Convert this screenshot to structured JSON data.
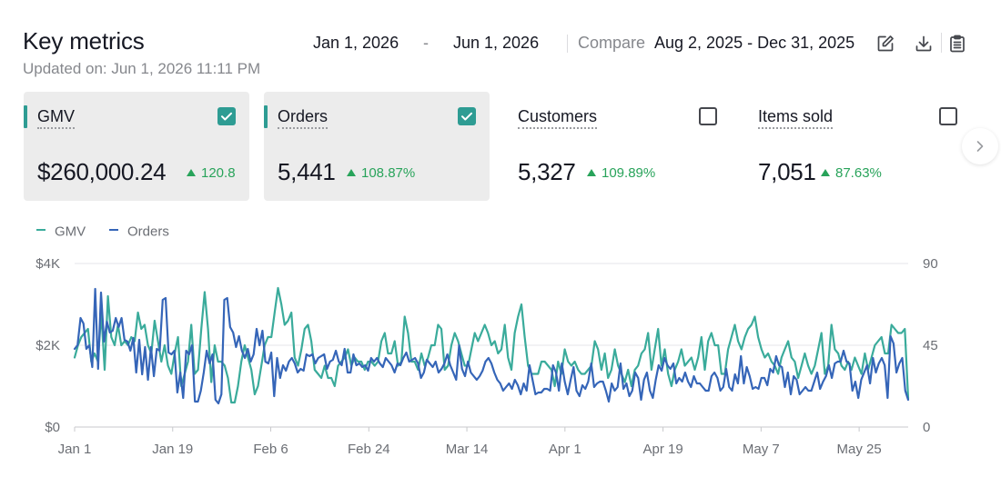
{
  "header": {
    "title": "Key metrics",
    "updated": "Updated on: Jun 1, 2026 11:11 PM",
    "date_start": "Jan 1, 2026",
    "date_separator": "-",
    "date_end": "Jun 1, 2026",
    "compare_label": "Compare",
    "compare_range": "Aug 2, 2025 - Dec 31, 2025"
  },
  "icons": {
    "edit": "edit-icon",
    "download": "download-icon",
    "report": "clipboard-icon",
    "next": "chevron-right-icon"
  },
  "colors": {
    "gmv": "#3aab9b",
    "orders": "#3565b8",
    "accent": "#2e9c93",
    "positive": "#28a35a"
  },
  "cards": [
    {
      "label": "GMV",
      "value": "$260,000.24",
      "change": "120.8",
      "checked": true,
      "selected": true
    },
    {
      "label": "Orders",
      "value": "5,441",
      "change": "108.87%",
      "checked": true,
      "selected": true
    },
    {
      "label": "Customers",
      "value": "5,327",
      "change": "109.89%",
      "checked": false,
      "selected": false
    },
    {
      "label": "Items sold",
      "value": "7,051",
      "change": "87.63%",
      "checked": false,
      "selected": false
    }
  ],
  "chart_data": {
    "type": "line",
    "x_labels": [
      "Jan 1",
      "Jan 19",
      "Feb 6",
      "Feb 24",
      "Mar 14",
      "Apr 1",
      "Apr 19",
      "May 7",
      "May 25"
    ],
    "x_start": "Jan 1, 2026",
    "days": 153,
    "y_left": {
      "ticks": [
        "$0",
        "$2K",
        "$4K"
      ],
      "range": [
        0,
        4000
      ]
    },
    "y_right": {
      "ticks": [
        "0",
        "45",
        "90"
      ],
      "range": [
        0,
        90
      ]
    },
    "grid": true,
    "legend_position": "top-left",
    "series": [
      {
        "name": "GMV",
        "axis": "left",
        "color": "#3aab9b",
        "values": [
          1700,
          2000,
          2200,
          2300,
          2400,
          1600,
          1800,
          1600,
          2800,
          1400,
          3200,
          2200,
          2000,
          2500,
          2000,
          2100,
          2000,
          2200,
          2100,
          2800,
          2400,
          2500,
          2000,
          1800,
          2600,
          2100,
          1600,
          2000,
          1500,
          1300,
          1800,
          2200,
          1000,
          1300,
          1600,
          2500,
          1300,
          1400,
          2400,
          3300,
          2400,
          1100,
          2000,
          1600,
          1600,
          1500,
          1200,
          600,
          600,
          1000,
          1600,
          2000,
          1700,
          1400,
          800,
          1000,
          1500,
          2000,
          2200,
          2200,
          2800,
          3400,
          3000,
          2500,
          2600,
          2800,
          1700,
          1500,
          1900,
          2400,
          2500,
          2100,
          1400,
          1300,
          1200,
          1500,
          1200,
          1200,
          1000,
          1500,
          1600,
          1700,
          1900,
          1500,
          1700,
          1600,
          1600,
          1400,
          1600,
          1600,
          1500,
          1600,
          2100,
          2300,
          1800,
          1800,
          2100,
          1500,
          1600,
          2700,
          2300,
          1600,
          1600,
          1400,
          1800,
          1500,
          1700,
          2000,
          2000,
          2500,
          2400,
          1400,
          1500,
          2000,
          2300,
          2100,
          1800,
          1500,
          1500,
          1900,
          2300,
          2100,
          2300,
          2500,
          2300,
          2000,
          2100,
          1800,
          1900,
          2500,
          1700,
          1400,
          2300,
          2700,
          3000,
          2200,
          1500,
          1300,
          1300,
          1300,
          1600,
          1600,
          1500,
          1400,
          1000,
          1600,
          1300,
          1900,
          1600,
          1500,
          1600,
          1400,
          1300,
          1300,
          1400,
          1500,
          2100,
          1900,
          1400,
          1800,
          1200,
          1400,
          1900,
          1500,
          1300,
          1100,
          1400,
          1000,
          1400,
          1500,
          1800,
          1900,
          2300,
          1400,
          1900,
          2400,
          1500,
          1900,
          1300,
          1000,
          1400,
          1600,
          1900,
          1500,
          1600,
          1700,
          1400,
          1700,
          2200,
          1400,
          2100,
          2300,
          2000,
          2000,
          1300,
          1300,
          1900,
          2200,
          2500,
          2100,
          1900,
          2200,
          2400,
          2500,
          2700,
          2200,
          1900,
          1700,
          1800,
          1600,
          1500,
          1300,
          1700,
          1900,
          2100,
          1700,
          1600,
          1200,
          1500,
          1800,
          1500,
          1300,
          1500,
          1900,
          2300,
          1300,
          1500,
          2500,
          1900,
          1800,
          1500,
          1400,
          1600,
          1400,
          1700,
          1500,
          1300,
          1800,
          1400,
          1700,
          2000,
          2100,
          2200,
          1800,
          1800,
          2500,
          2400,
          2300,
          2300,
          2400,
          700
        ]
      },
      {
        "name": "Orders",
        "axis": "right",
        "color": "#3565b8",
        "values": [
          43,
          45,
          60,
          57,
          43,
          45,
          33,
          76,
          32,
          74,
          47,
          58,
          52,
          53,
          60,
          55,
          60,
          48,
          47,
          42,
          49,
          30,
          48,
          29,
          44,
          26,
          44,
          28,
          43,
          42,
          70,
          71,
          41,
          40,
          42,
          19,
          30,
          16,
          42,
          40,
          45,
          14,
          14,
          20,
          30,
          42,
          35,
          40,
          15,
          13,
          18,
          70,
          71,
          55,
          52,
          44,
          50,
          42,
          38,
          43,
          36,
          40,
          54,
          45,
          53,
          36,
          35,
          41,
          17,
          38,
          27,
          34,
          31,
          36,
          38,
          35,
          30,
          32,
          31,
          40,
          39,
          40,
          35,
          38,
          39,
          40,
          32,
          36,
          37,
          42,
          36,
          34,
          43,
          30,
          30,
          40,
          34,
          35,
          33,
          34,
          31,
          38,
          36,
          38,
          35,
          33,
          38,
          36,
          34,
          30,
          35,
          34,
          38,
          41,
          36,
          37,
          38,
          35,
          27,
          30,
          37,
          35,
          33,
          36,
          30,
          32,
          35,
          40,
          34,
          30,
          26,
          45,
          32,
          28,
          36,
          30,
          28,
          26,
          28,
          31,
          36,
          38,
          35,
          30,
          26,
          24,
          20,
          22,
          24,
          21,
          26,
          23,
          18,
          24,
          20,
          34,
          26,
          18,
          19,
          19,
          21,
          21,
          20,
          34,
          30,
          20,
          35,
          25,
          18,
          26,
          33,
          20,
          17,
          23,
          21,
          25,
          35,
          22,
          24,
          25,
          25,
          20,
          14,
          24,
          20,
          22,
          35,
          21,
          24,
          17,
          20,
          30,
          27,
          15,
          26,
          30,
          20,
          16,
          26,
          34,
          31,
          38,
          34,
          32,
          35,
          24,
          27,
          25,
          30,
          25,
          22,
          28,
          24,
          24,
          22,
          20,
          20,
          28,
          30,
          27,
          20,
          22,
          32,
          22,
          20,
          29,
          24,
          39,
          24,
          33,
          28,
          21,
          22,
          21,
          27,
          27,
          23,
          32,
          30,
          39,
          34,
          33,
          22,
          30,
          18,
          28,
          26,
          18,
          20,
          22,
          20,
          20,
          25,
          30,
          21,
          25,
          28,
          34,
          27,
          35,
          36,
          36,
          42,
          36,
          35,
          20,
          25,
          16,
          26,
          30,
          34,
          24,
          38,
          30,
          35,
          38,
          34,
          16,
          50,
          46,
          30,
          35,
          38,
          20,
          15
        ]
      }
    ]
  }
}
